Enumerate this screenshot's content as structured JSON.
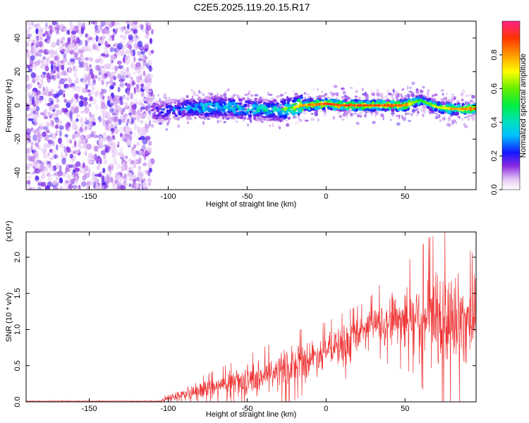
{
  "title": "C2E5.2025.119.20.15.R17",
  "colors": {
    "frame": "#000000",
    "snr_line": "#ee3333",
    "background": "#ffffff"
  },
  "chart_data": [
    {
      "type": "heatmap",
      "name": "spectrogram",
      "xlabel": "Height of straight line (km)",
      "ylabel": "Frequency (Hz)",
      "xlim": [
        -190,
        95
      ],
      "ylim": [
        -50,
        50
      ],
      "xticks": [
        "-150",
        "-100",
        "-50",
        "0",
        "50"
      ],
      "xtick_values": [
        -150,
        -100,
        -50,
        0,
        50
      ],
      "yticks": [
        "-40",
        "-20",
        "0",
        "20",
        "40"
      ],
      "ytick_values": [
        -40,
        -20,
        0,
        20,
        40
      ],
      "colorbar": {
        "label": "Normalized spectral amplitude",
        "range": [
          0,
          1
        ],
        "ticks": [
          "0.0",
          "0.2",
          "0.4",
          "0.6",
          "0.8"
        ],
        "tick_values": [
          0.0,
          0.2,
          0.4,
          0.6,
          0.8
        ]
      },
      "ridge": {
        "x": [
          -110,
          -90,
          -70,
          -50,
          -30,
          -15,
          0,
          10,
          30,
          50,
          60,
          70,
          80,
          95
        ],
        "freq": [
          -4,
          -2,
          -1,
          -2,
          -3,
          0,
          1,
          0,
          0,
          0,
          3,
          -1,
          -2,
          -2
        ],
        "amplitude": [
          0.25,
          0.35,
          0.45,
          0.45,
          0.5,
          0.85,
          0.95,
          0.95,
          0.95,
          0.9,
          0.55,
          0.7,
          0.85,
          0.9
        ]
      },
      "noise_region": {
        "x": [
          -190,
          -110
        ],
        "freq": [
          -50,
          50
        ],
        "amplitude": [
          0.05,
          0.2
        ]
      }
    },
    {
      "type": "line",
      "name": "snr",
      "xlabel": "Height of straight line (km)",
      "ylabel": "SNR (10 * v/v)",
      "scale_label": "(x10⁴)",
      "xlim": [
        -190,
        95
      ],
      "ylim": [
        0,
        2.35
      ],
      "xticks": [
        "-150",
        "-100",
        "-50",
        "0",
        "50"
      ],
      "xtick_values": [
        -150,
        -100,
        -50,
        0,
        50
      ],
      "yticks": [
        "0.0",
        "0.5",
        "1.0",
        "1.5",
        "2.0"
      ],
      "ytick_values": [
        0.0,
        0.5,
        1.0,
        1.5,
        2.0
      ],
      "envelope": {
        "x": [
          -190,
          -105,
          -100,
          -80,
          -60,
          -40,
          -20,
          0,
          15,
          25,
          40,
          55,
          65,
          80,
          95
        ],
        "mean": [
          0.01,
          0.01,
          0.05,
          0.15,
          0.25,
          0.35,
          0.5,
          0.7,
          0.8,
          1.05,
          1.15,
          1.2,
          1.15,
          1.1,
          1.2
        ],
        "spread": [
          0.005,
          0.005,
          0.05,
          0.12,
          0.18,
          0.25,
          0.3,
          0.25,
          0.3,
          0.2,
          0.4,
          0.5,
          0.7,
          0.8,
          0.5
        ]
      }
    }
  ]
}
